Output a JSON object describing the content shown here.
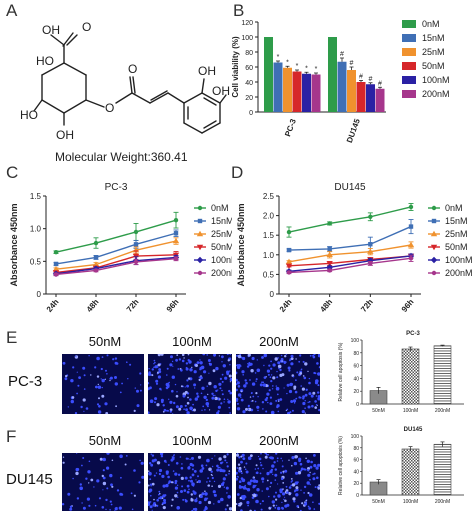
{
  "panels": {
    "a": {
      "letter": "A",
      "mw_label": "Molecular Weight:360.41"
    },
    "b": {
      "letter": "B"
    },
    "c": {
      "letter": "C"
    },
    "d": {
      "letter": "D"
    },
    "e": {
      "letter": "E"
    },
    "f": {
      "letter": "F"
    }
  },
  "molecule": {
    "atoms": [
      "O",
      "OH",
      "HO",
      "HO",
      "OH",
      "O",
      "O",
      "OH",
      "OH"
    ]
  },
  "micro": {
    "e": {
      "row_label": "PC-3",
      "conc": [
        "50nM",
        "100nM",
        "200nM"
      ]
    },
    "f": {
      "row_label": "DU145",
      "conc": [
        "50nM",
        "100nM",
        "200nM"
      ]
    }
  },
  "colors": {
    "c0": "#2e9c4a",
    "c15": "#3f6fb5",
    "c25": "#f0922e",
    "c50": "#d6262a",
    "c100": "#2a21a4",
    "c200": "#a6368c",
    "microscope_bg": "#070a4a",
    "nuclei": "#3b4dff"
  },
  "chart_data": [
    {
      "id": "B",
      "type": "bar",
      "categories": [
        "PC-3",
        "DU145"
      ],
      "ylabel": "Cell viability (%)",
      "ylim": [
        0,
        120
      ],
      "yticks": [
        0,
        20,
        40,
        60,
        80,
        100,
        120
      ],
      "legend": "right",
      "series": [
        {
          "name": "0nM",
          "values": [
            100,
            100
          ],
          "err": [
            0,
            0
          ],
          "mark": [
            "",
            ""
          ]
        },
        {
          "name": "15nM",
          "values": [
            66,
            67
          ],
          "err": [
            2,
            5
          ],
          "mark": [
            "*",
            "#"
          ]
        },
        {
          "name": "25nM",
          "values": [
            59,
            56
          ],
          "err": [
            2,
            4
          ],
          "mark": [
            "*",
            "#"
          ]
        },
        {
          "name": "50nM",
          "values": [
            54,
            40
          ],
          "err": [
            2,
            2
          ],
          "mark": [
            "*",
            "#"
          ]
        },
        {
          "name": "100nM",
          "values": [
            51,
            37
          ],
          "err": [
            2,
            2
          ],
          "mark": [
            "*",
            "#"
          ]
        },
        {
          "name": "200nM",
          "values": [
            50,
            31
          ],
          "err": [
            2,
            2
          ],
          "mark": [
            "*",
            "#"
          ]
        }
      ]
    },
    {
      "id": "C",
      "type": "line",
      "title": "PC-3",
      "x": [
        "24h",
        "48h",
        "72h",
        "96h"
      ],
      "ylabel": "Absorbance 450nm",
      "ylim": [
        0,
        1.5
      ],
      "yticks": [
        0,
        0.5,
        1.0,
        1.5
      ],
      "ytick_labels": [
        "0",
        "0.5",
        "1.0",
        "1.5"
      ],
      "legend": "right",
      "series": [
        {
          "name": "0nM",
          "values": [
            0.64,
            0.78,
            0.95,
            1.13
          ],
          "err": [
            0.02,
            0.08,
            0.13,
            0.12
          ]
        },
        {
          "name": "15nM",
          "values": [
            0.46,
            0.56,
            0.76,
            0.93
          ],
          "err": [
            0.02,
            0.03,
            0.06,
            0.05
          ]
        },
        {
          "name": "25nM",
          "values": [
            0.38,
            0.45,
            0.67,
            0.81
          ],
          "err": [
            0.02,
            0.03,
            0.05,
            0.05
          ]
        },
        {
          "name": "50nM",
          "values": [
            0.33,
            0.4,
            0.58,
            0.6
          ],
          "err": [
            0.02,
            0.02,
            0.08,
            0.05
          ]
        },
        {
          "name": "100nM",
          "values": [
            0.31,
            0.39,
            0.51,
            0.56
          ],
          "err": [
            0.02,
            0.02,
            0.06,
            0.03
          ]
        },
        {
          "name": "200nM",
          "values": [
            0.3,
            0.36,
            0.49,
            0.54
          ],
          "err": [
            0.02,
            0.02,
            0.04,
            0.03
          ]
        }
      ]
    },
    {
      "id": "D",
      "type": "line",
      "title": "DU145",
      "x": [
        "24h",
        "48h",
        "72h",
        "96h"
      ],
      "ylabel": "Absorbance 450nm",
      "ylim": [
        0,
        2.5
      ],
      "yticks": [
        0,
        0.5,
        1.0,
        1.5,
        2.0,
        2.5
      ],
      "ytick_labels": [
        "0",
        "0.5",
        "1.0",
        "1.5",
        "2.0",
        "2.5"
      ],
      "legend": "right",
      "series": [
        {
          "name": "0nM",
          "values": [
            1.58,
            1.8,
            1.97,
            2.22
          ],
          "err": [
            0.13,
            0.04,
            0.1,
            0.09
          ]
        },
        {
          "name": "15nM",
          "values": [
            1.12,
            1.15,
            1.27,
            1.72
          ],
          "err": [
            0.03,
            0.06,
            0.18,
            0.18
          ]
        },
        {
          "name": "25nM",
          "values": [
            0.82,
            1.0,
            1.08,
            1.25
          ],
          "err": [
            0.03,
            0.08,
            0.08,
            0.08
          ]
        },
        {
          "name": "50nM",
          "values": [
            0.72,
            0.78,
            0.88,
            0.97
          ],
          "err": [
            0.03,
            0.05,
            0.05,
            0.05
          ]
        },
        {
          "name": "100nM",
          "values": [
            0.58,
            0.68,
            0.85,
            0.97
          ],
          "err": [
            0.03,
            0.03,
            0.05,
            0.05
          ]
        },
        {
          "name": "200nM",
          "values": [
            0.55,
            0.6,
            0.78,
            0.91
          ],
          "err": [
            0.03,
            0.03,
            0.05,
            0.08
          ]
        }
      ]
    },
    {
      "id": "E",
      "type": "bar",
      "title": "PC-3",
      "categories": [
        "50nM",
        "100nM",
        "200nM"
      ],
      "values": [
        21,
        86,
        91
      ],
      "err": [
        5,
        3,
        1
      ],
      "ylabel": "Relative cell apoptosis (%)",
      "ylim": [
        0,
        100
      ],
      "yticks": [
        0,
        20,
        40,
        60,
        80,
        100
      ],
      "fills": [
        "solid",
        "checker",
        "hstripe"
      ]
    },
    {
      "id": "F",
      "type": "bar",
      "title": "DU145",
      "categories": [
        "50nM",
        "100nM",
        "200nM"
      ],
      "values": [
        22,
        78,
        86
      ],
      "err": [
        4,
        4,
        4
      ],
      "ylabel": "Relative cell apoptosis (%)",
      "ylim": [
        0,
        100
      ],
      "yticks": [
        0,
        20,
        40,
        60,
        80,
        100
      ],
      "fills": [
        "solid",
        "checker",
        "hstripe"
      ]
    }
  ]
}
